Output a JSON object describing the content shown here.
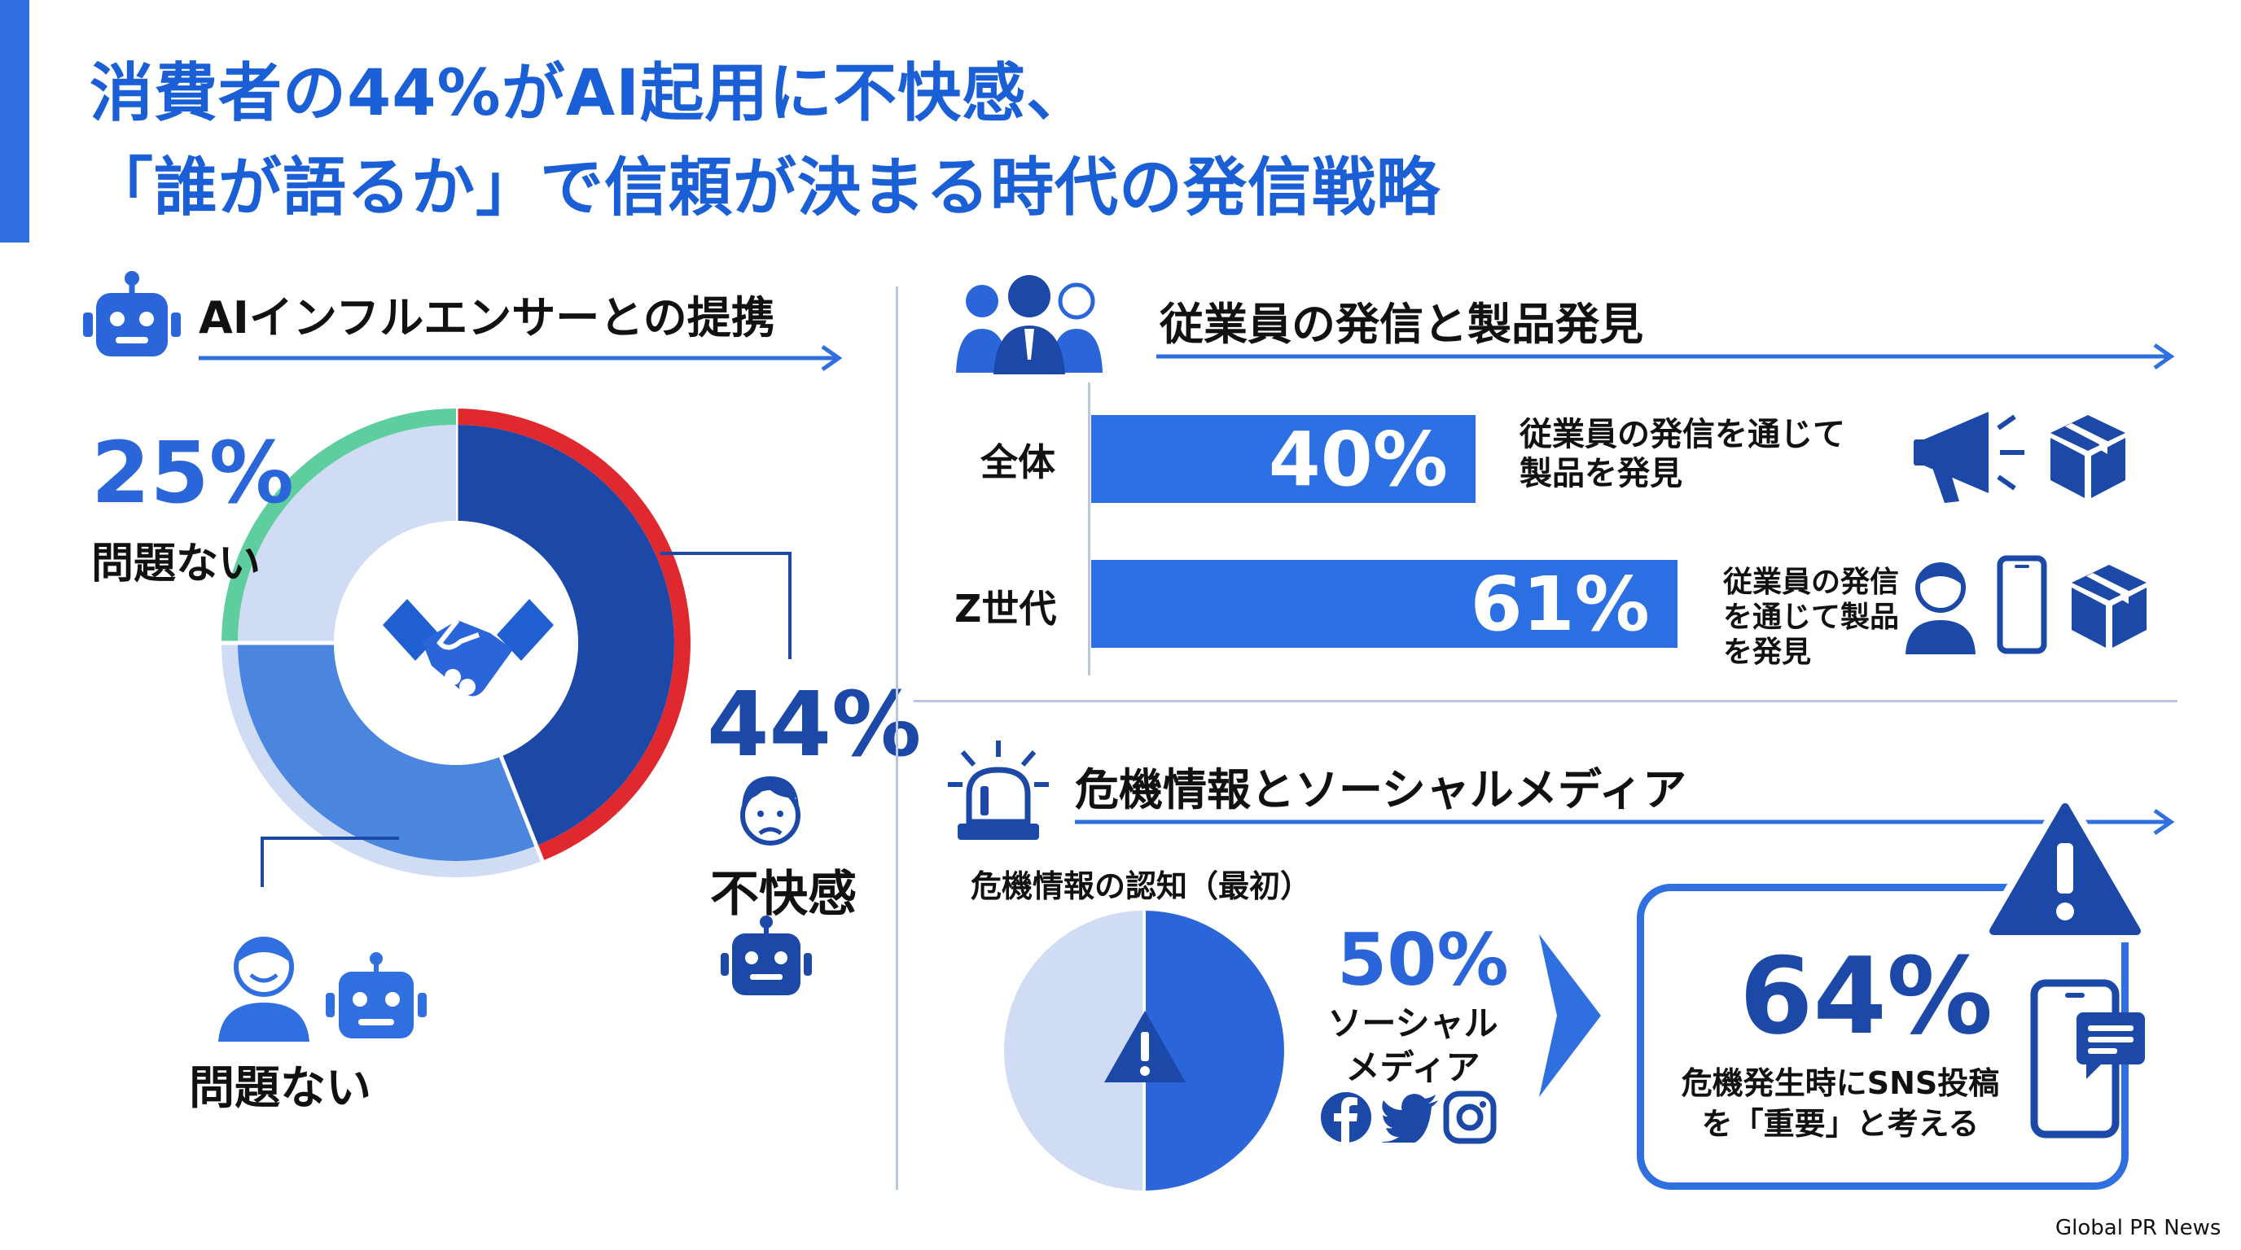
{
  "header": {
    "title_line1": "消費者の44%がAI起用に不快感、",
    "title_line2": "「誰が語るか」で信頼が決まる時代の発信戦略"
  },
  "colors": {
    "primary_blue": "#2a66d9",
    "dark_blue": "#1c48a8",
    "light_blue": "#cfdcf3",
    "mid_blue": "#4a86e0",
    "red": "#e0292f",
    "green": "#5fce9e"
  },
  "ai_section": {
    "title": "AIインフルエンサーとの提携",
    "icon": "robot-icon"
  },
  "employee_section": {
    "title": "従業員の発信と製品発見",
    "icon": "people-icon"
  },
  "crisis_section": {
    "title": "危機情報とソーシャルメディア",
    "icon": "siren-icon",
    "pie_title": "危機情報の認知（最初）",
    "sns_value": "50%",
    "sns_label_line1": "ソーシャル",
    "sns_label_line2": "メディア",
    "box_value": "64%",
    "box_label_line1": "危機発生時にSNS投稿",
    "box_label_line2": "を「重要」と考える"
  },
  "chart_data": [
    {
      "type": "pie",
      "categories": [
        "不快感",
        "問題ない",
        "問題ない"
      ],
      "values": [
        44,
        31,
        25
      ],
      "labels": [
        "44%",
        "",
        "25%"
      ],
      "center_icon": "handshake-icon"
    },
    {
      "type": "bar",
      "categories": [
        "全体",
        "Z世代"
      ],
      "values": [
        40,
        61
      ],
      "labels": [
        "40%",
        "61%"
      ],
      "annotations": [
        "従業員の発信を通じて製品を発見",
        "従業員の発信を通じて製品を発見"
      ]
    },
    {
      "type": "pie",
      "title": "危機情報の認知（最初）",
      "categories": [
        "ソーシャルメディア",
        ""
      ],
      "values": [
        50,
        50
      ],
      "labels": [
        "50%",
        ""
      ]
    }
  ],
  "labels": {
    "pct_25": "25%",
    "ok_label_top": "問題ない",
    "pct_44": "44%",
    "discomfort_label": "不快感",
    "ok_label_bottom": "問題ない",
    "bar1_category": "全体",
    "bar1_value": "40%",
    "bar1_note_line1": "従業員の発信を通じて",
    "bar1_note_line2": "製品を発見",
    "bar2_category": "Z世代",
    "bar2_value": "61%",
    "bar2_note_line1": "従業員の発信",
    "bar2_note_line2": "を通じて製品",
    "bar2_note_line3": "を発見"
  },
  "footer": {
    "source": "Global PR News"
  }
}
